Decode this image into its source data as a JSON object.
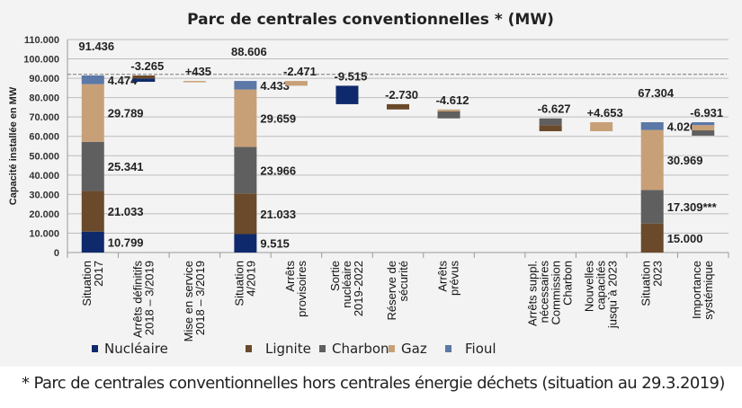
{
  "chart_data": {
    "type": "bar",
    "subtype": "waterfall-stacked",
    "title": "Parc de centrales conventionnelles *  (MW)",
    "ylabel": "Capacité installée en MW",
    "ylim": [
      0,
      110000
    ],
    "yticks": [
      "0",
      "10.000",
      "20.000",
      "30.000",
      "40.000",
      "50.000",
      "60.000",
      "70.000",
      "80.000",
      "90.000",
      "100.000",
      "110.000"
    ],
    "grid": true,
    "reference_line": 92000,
    "legend_position": "bottom",
    "legend": [
      {
        "name": "Nucléaire",
        "key": "nuc",
        "color": "#0f2a6c"
      },
      {
        "name": "Lignite",
        "key": "lig",
        "color": "#6a4a2b"
      },
      {
        "name": "Charbon",
        "key": "cha",
        "color": "#5f5f5f"
      },
      {
        "name": "Gaz",
        "key": "gaz",
        "color": "#c8a078"
      },
      {
        "name": "Fioul",
        "key": "fio",
        "color": "#5b78a6"
      }
    ],
    "categories": [
      {
        "label": [
          "Situation",
          "2017"
        ],
        "total": "91.436",
        "segments": [
          [
            "nuc",
            0,
            10799,
            "10.799"
          ],
          [
            "lig",
            10799,
            31832,
            "21.033"
          ],
          [
            "cha",
            31832,
            57173,
            "25.341"
          ],
          [
            "gaz",
            57173,
            86962,
            "29.789"
          ],
          [
            "fio",
            86962,
            91436,
            "4.474"
          ]
        ]
      },
      {
        "label": [
          "Arrêts définitifs",
          "2018 – 3/2019"
        ],
        "delta": "-3.265",
        "segments": [
          [
            "nuc",
            88171,
            89900
          ],
          [
            "lig",
            89900,
            91436
          ]
        ]
      },
      {
        "label": [
          "Mise en service",
          "2018 – 3/2019"
        ],
        "delta": "+435",
        "segments": [
          [
            "gaz",
            88171,
            88606
          ]
        ]
      },
      {
        "label": [
          "Situation",
          "4/2019"
        ],
        "total": "88.606",
        "segments": [
          [
            "nuc",
            0,
            9515,
            "9.515"
          ],
          [
            "lig",
            9515,
            30548,
            "21.033"
          ],
          [
            "cha",
            30548,
            54514,
            "23.966"
          ],
          [
            "gaz",
            54514,
            84173,
            "29.659"
          ],
          [
            "fio",
            84173,
            88606,
            "4.433"
          ]
        ]
      },
      {
        "label": [
          "Arrêts",
          "provisoires"
        ],
        "delta": "-2.471",
        "segments": [
          [
            "gaz",
            86135,
            88606
          ]
        ]
      },
      {
        "label": [
          "Sortie",
          "nucléaire",
          "2019-2022"
        ],
        "delta": "-9.515",
        "segments": [
          [
            "nuc",
            76620,
            86135
          ]
        ]
      },
      {
        "label": [
          "Réserve de",
          "sécurité"
        ],
        "delta": "-2.730",
        "segments": [
          [
            "lig",
            73890,
            76620
          ]
        ]
      },
      {
        "label": [
          "Arrêts",
          "prévus"
        ],
        "delta": "-4.612",
        "segments": [
          [
            "cha",
            69278,
            72890
          ],
          [
            "gaz",
            72890,
            73890
          ]
        ]
      },
      {
        "label": [
          "Arrêts suppl.",
          "nécessaires",
          "Commission",
          "Charbon"
        ],
        "delta": "-6.627",
        "segments": [
          [
            "lig",
            62651,
            65778
          ],
          [
            "cha",
            65778,
            69278
          ]
        ]
      },
      {
        "label": [
          "Nouvelles",
          "capacités",
          "jusqu`à 2023"
        ],
        "delta": "+4.653",
        "segments": [
          [
            "gaz",
            62651,
            67304
          ]
        ]
      },
      {
        "label": [
          "Situation",
          "2023"
        ],
        "total": "67.304",
        "segments": [
          [
            "lig",
            0,
            15000,
            "15.000"
          ],
          [
            "cha",
            15000,
            32309,
            "17.309***"
          ],
          [
            "gaz",
            32309,
            63278,
            "30.969"
          ],
          [
            "fio",
            63278,
            67304,
            "4.026"
          ]
        ]
      },
      {
        "label": [
          "Importance",
          "systémique"
        ],
        "delta": "-6.931",
        "segments": [
          [
            "cha",
            60373,
            63104
          ],
          [
            "gaz",
            63104,
            65804
          ],
          [
            "fio",
            65804,
            67304
          ]
        ]
      }
    ]
  },
  "footnote": "* Parc de centrales conventionnelles hors centrales énergie déchets (situation au 29.3.2019)"
}
